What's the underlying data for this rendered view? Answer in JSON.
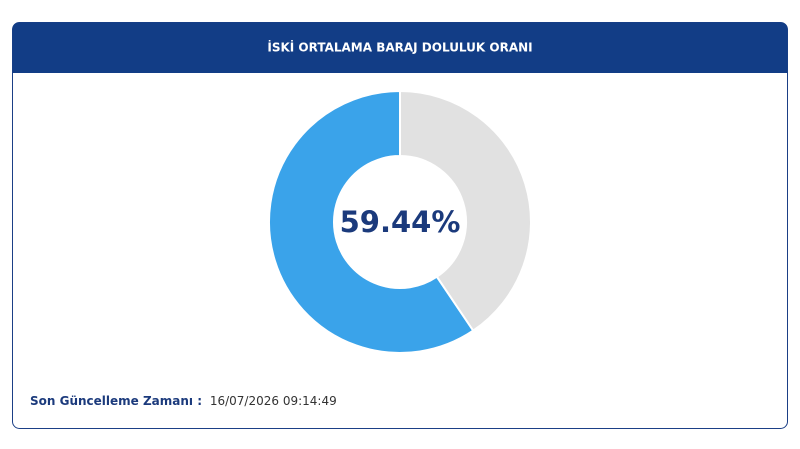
{
  "chart_data": {
    "type": "donut",
    "title": "İSKİ ORTALAMA BARAJ DOLULUK ORANI",
    "values": [
      59.44,
      40.56
    ],
    "value_labels": [
      "59.44%",
      null
    ],
    "colors": [
      "#3aa3ea",
      "#e1e1e1"
    ]
  },
  "footer": {
    "label": "Son Güncelleme Zamanı :",
    "value": "16/07/2026 09:14:49"
  }
}
